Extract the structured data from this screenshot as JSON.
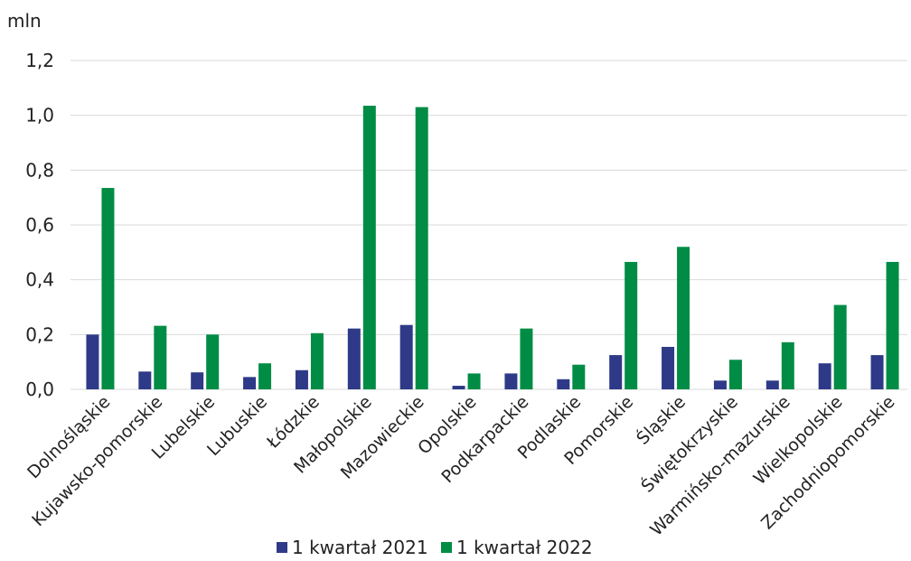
{
  "chart_data": {
    "type": "bar",
    "unit_label": "mln",
    "categories": [
      "Dolnośląskie",
      "Kujawsko-pomorskie",
      "Lubelskie",
      "Lubuskie",
      "Łódzkie",
      "Małopolskie",
      "Mazowieckie",
      "Opolskie",
      "Podkarpackie",
      "Podlaskie",
      "Pomorskie",
      "Śląskie",
      "Świętokrzyskie",
      "Warmińsko-mazurskie",
      "Wielkopolskie",
      "Zachodniopomorskie"
    ],
    "series": [
      {
        "name": "1 kwartał 2021",
        "color": "#2e3a87",
        "values": [
          0.2,
          0.065,
          0.062,
          0.045,
          0.07,
          0.222,
          0.235,
          0.013,
          0.058,
          0.037,
          0.125,
          0.155,
          0.032,
          0.032,
          0.095,
          0.125
        ]
      },
      {
        "name": "1 kwartał 2022",
        "color": "#008c45",
        "values": [
          0.735,
          0.232,
          0.2,
          0.095,
          0.205,
          1.035,
          1.03,
          0.058,
          0.222,
          0.09,
          0.465,
          0.52,
          0.108,
          0.172,
          0.308,
          0.465
        ]
      }
    ],
    "yticks": [
      "0,0",
      "0,2",
      "0,4",
      "0,6",
      "0,8",
      "1,0",
      "1,2"
    ],
    "ylim": [
      0,
      1.2
    ],
    "grid": true,
    "legend_position": "bottom"
  }
}
